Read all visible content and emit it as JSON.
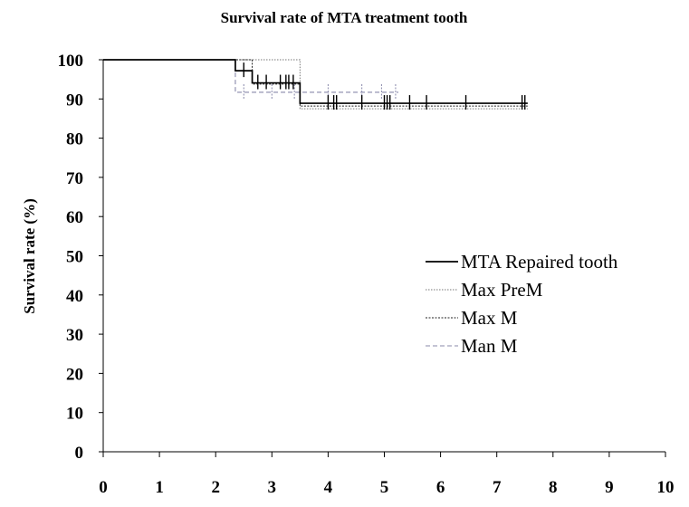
{
  "chart_data": {
    "type": "line",
    "title": "Survival rate of  MTA treatment tooth",
    "xlabel": "",
    "ylabel": "Survival rate (%)",
    "xlim": [
      0,
      10
    ],
    "ylim": [
      0,
      100
    ],
    "x_ticks": [
      "0",
      "1",
      "2",
      "3",
      "4",
      "5",
      "6",
      "7",
      "8",
      "9",
      "10"
    ],
    "y_ticks": [
      "0",
      "10",
      "20",
      "30",
      "40",
      "50",
      "60",
      "70",
      "80",
      "90",
      "100"
    ],
    "grid": false,
    "legend_position": "right",
    "series": [
      {
        "name": "MTA Repaired tooth",
        "color": "#000000",
        "style": "solid",
        "steps": [
          [
            0,
            100
          ],
          [
            2.35,
            97.2
          ],
          [
            2.65,
            94.1
          ],
          [
            3.5,
            88.9
          ],
          [
            7.55,
            88.9
          ]
        ],
        "censor_x": [
          2.5,
          2.75,
          2.9,
          3.15,
          3.25,
          3.3,
          3.38,
          4.0,
          4.1,
          4.15,
          4.6,
          5.0,
          5.05,
          5.1,
          5.45,
          5.75,
          6.45,
          7.45,
          7.5
        ]
      },
      {
        "name": "Max PreM",
        "color": "#777777",
        "style": "dotted",
        "steps": [
          [
            0,
            100
          ],
          [
            3.5,
            87.5
          ],
          [
            7.55,
            87.5
          ]
        ],
        "censor_x": []
      },
      {
        "name": "Max M",
        "color": "#222222",
        "style": "dashed-fine",
        "steps": [
          [
            0,
            100
          ],
          [
            2.65,
            93.8
          ],
          [
            3.5,
            88.2
          ],
          [
            7.55,
            88.2
          ]
        ],
        "censor_x": []
      },
      {
        "name": "Man M",
        "color": "#8888aa",
        "style": "dashed",
        "steps": [
          [
            0,
            100
          ],
          [
            2.35,
            91.7
          ],
          [
            5.25,
            91.7
          ]
        ],
        "censor_x": [
          2.5,
          3.0,
          3.4,
          4.0,
          4.6,
          4.95,
          5.2
        ]
      }
    ]
  }
}
